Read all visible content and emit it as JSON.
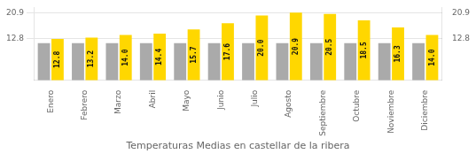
{
  "chart_data": {
    "type": "bar",
    "title": "Temperaturas Medias en castellar de la ribera",
    "categories": [
      "Enero",
      "Febrero",
      "Marzo",
      "Abril",
      "Mayo",
      "Junio",
      "Julio",
      "Agosto",
      "Septiembre",
      "Octubre",
      "Noviembre",
      "Diciembre"
    ],
    "series": [
      {
        "color": "#AAAAAA",
        "values": [
          11.5,
          11.5,
          11.5,
          11.5,
          11.5,
          11.5,
          11.5,
          11.5,
          11.5,
          11.5,
          11.5,
          11.5
        ]
      },
      {
        "color": "#FFD700",
        "values": [
          12.8,
          13.2,
          14.0,
          14.4,
          15.7,
          17.6,
          20.0,
          20.9,
          20.5,
          18.5,
          16.3,
          14.0
        ],
        "value_labels": [
          "12.8",
          "13.2",
          "14.0",
          "14.4",
          "15.7",
          "17.6",
          "20.0",
          "20.9",
          "20.5",
          "18.5",
          "16.3",
          "14.0"
        ],
        "data_labels": true
      }
    ],
    "ylim": [
      0,
      22.5
    ],
    "yticks": [
      12.8,
      20.9
    ],
    "y2lim": [
      0,
      22.5
    ],
    "y2ticks": [
      12.8,
      20.9
    ],
    "grid": true
  }
}
